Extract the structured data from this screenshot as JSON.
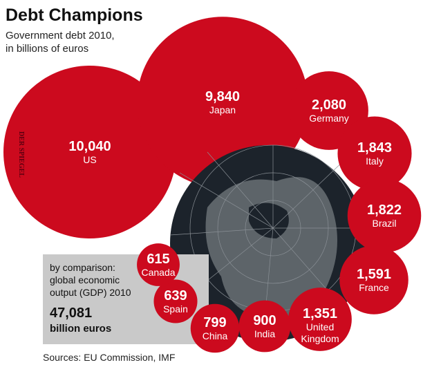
{
  "chart_data": {
    "type": "bubble",
    "title": "Debt Champions",
    "subtitle": [
      "Government debt 2010,",
      "in billions of euros"
    ],
    "categories": [
      "US",
      "Japan",
      "Germany",
      "Italy",
      "Brazil",
      "France",
      "United Kingdom",
      "India",
      "China",
      "Spain",
      "Canada"
    ],
    "values": [
      10040,
      9840,
      2080,
      1843,
      1822,
      1591,
      1351,
      900,
      799,
      639,
      615
    ],
    "value_labels": [
      "10,040",
      "9,840",
      "2,080",
      "1,843",
      "1,822",
      "1,591",
      "1,351",
      "900",
      "799",
      "639",
      "615"
    ],
    "color": "#cc0a1e",
    "comparison": {
      "lines": [
        "by comparison:",
        "global economic",
        "output (GDP) 2010"
      ],
      "value": 47081,
      "value_label": "47,081",
      "unit": "billion euros"
    },
    "watermark": "DER SPIEGEL",
    "source": "Sources: EU Commission, IMF"
  }
}
